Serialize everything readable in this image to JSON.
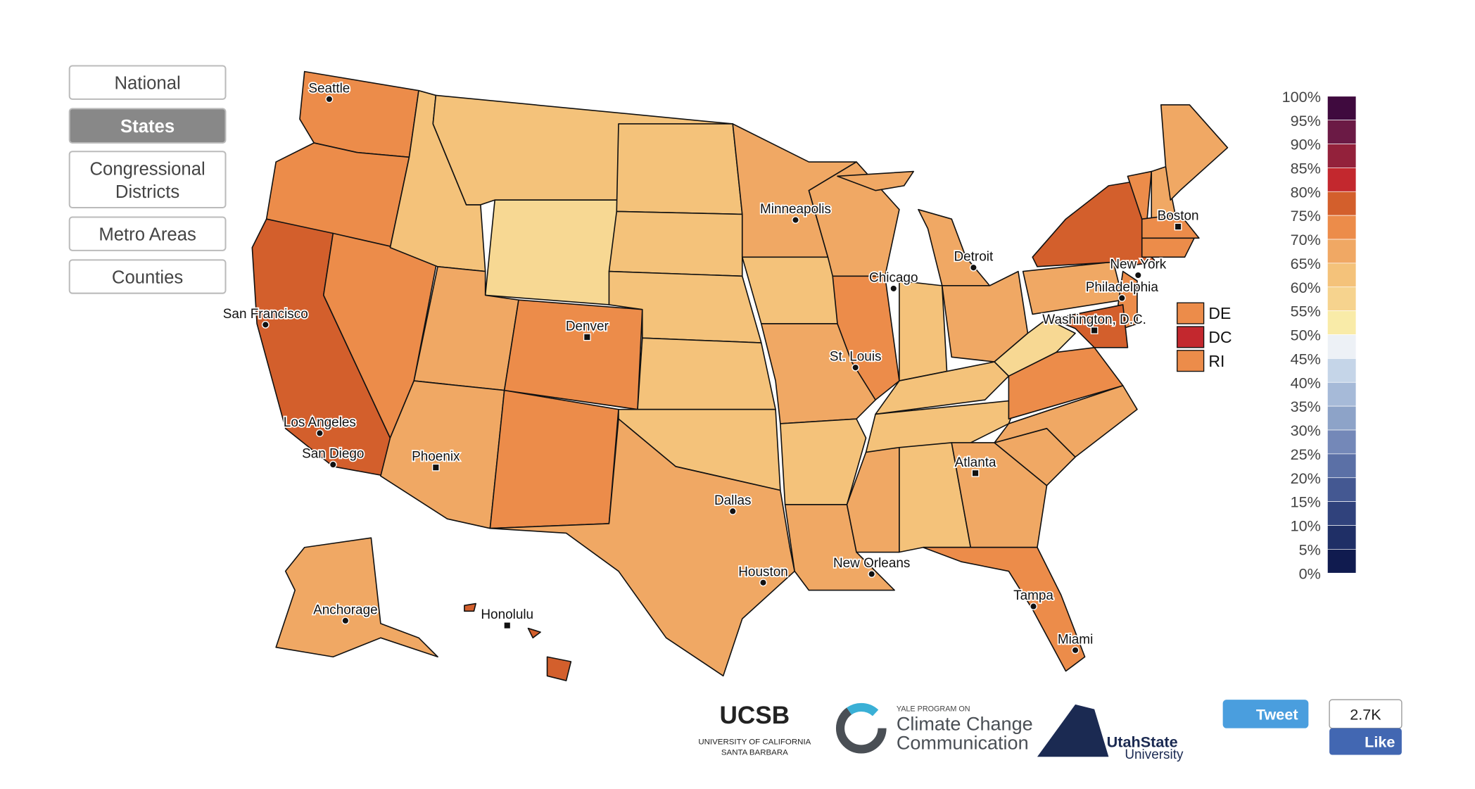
{
  "buttons": [
    "National",
    "States",
    "Congressional Districts",
    "Metro Areas",
    "Counties"
  ],
  "selected_button": 1,
  "cities": [
    "Seattle",
    "San Francisco",
    "Los Angeles",
    "San Diego",
    "Phoenix",
    "Denver",
    "Dallas",
    "Houston",
    "Minneapolis",
    "Chicago",
    "St. Louis",
    "New Orleans",
    "Atlanta",
    "Tampa",
    "Miami",
    "Detroit",
    "Washington, D.C.",
    "Philadelphia",
    "New York",
    "Boston",
    "Anchorage",
    "Honolulu"
  ],
  "small_states": [
    {
      "label": "DE",
      "color": "#ec8c4a"
    },
    {
      "label": "DC",
      "color": "#c3282e"
    },
    {
      "label": "RI",
      "color": "#ec8c4a"
    }
  ],
  "color_scale": {
    "labels": [
      "100%",
      "95%",
      "90%",
      "85%",
      "80%",
      "75%",
      "70%",
      "65%",
      "60%",
      "55%",
      "50%",
      "45%",
      "40%",
      "35%",
      "30%",
      "25%",
      "20%",
      "15%",
      "10%",
      "5%",
      "0%"
    ],
    "colors": [
      "#3f0a3e",
      "#6b1a45",
      "#93213b",
      "#c3282e",
      "#d35f2c",
      "#ec8c4a",
      "#f0a864",
      "#f4c27a",
      "#f6d38e",
      "#f9eba8",
      "#edf1f6",
      "#c5d5e8",
      "#a6bad8",
      "#8da3c8",
      "#7488b8",
      "#5b70a6",
      "#445892",
      "#30427c",
      "#1f2f66",
      "#101b4f"
    ]
  },
  "logos": {
    "ucsb": "UCSB",
    "ucsb_line1": "UNIVERSITY OF CALIFORNIA",
    "ucsb_line2": "SANTA BARBARA",
    "yale_small": "YALE PROGRAM ON",
    "yale_line1": "Climate Change",
    "yale_line2": "Communication",
    "utah_line1": "UtahState",
    "utah_line2": "University"
  },
  "social": {
    "tweet": "Tweet",
    "like_count": "2.7K",
    "like": "Like"
  }
}
